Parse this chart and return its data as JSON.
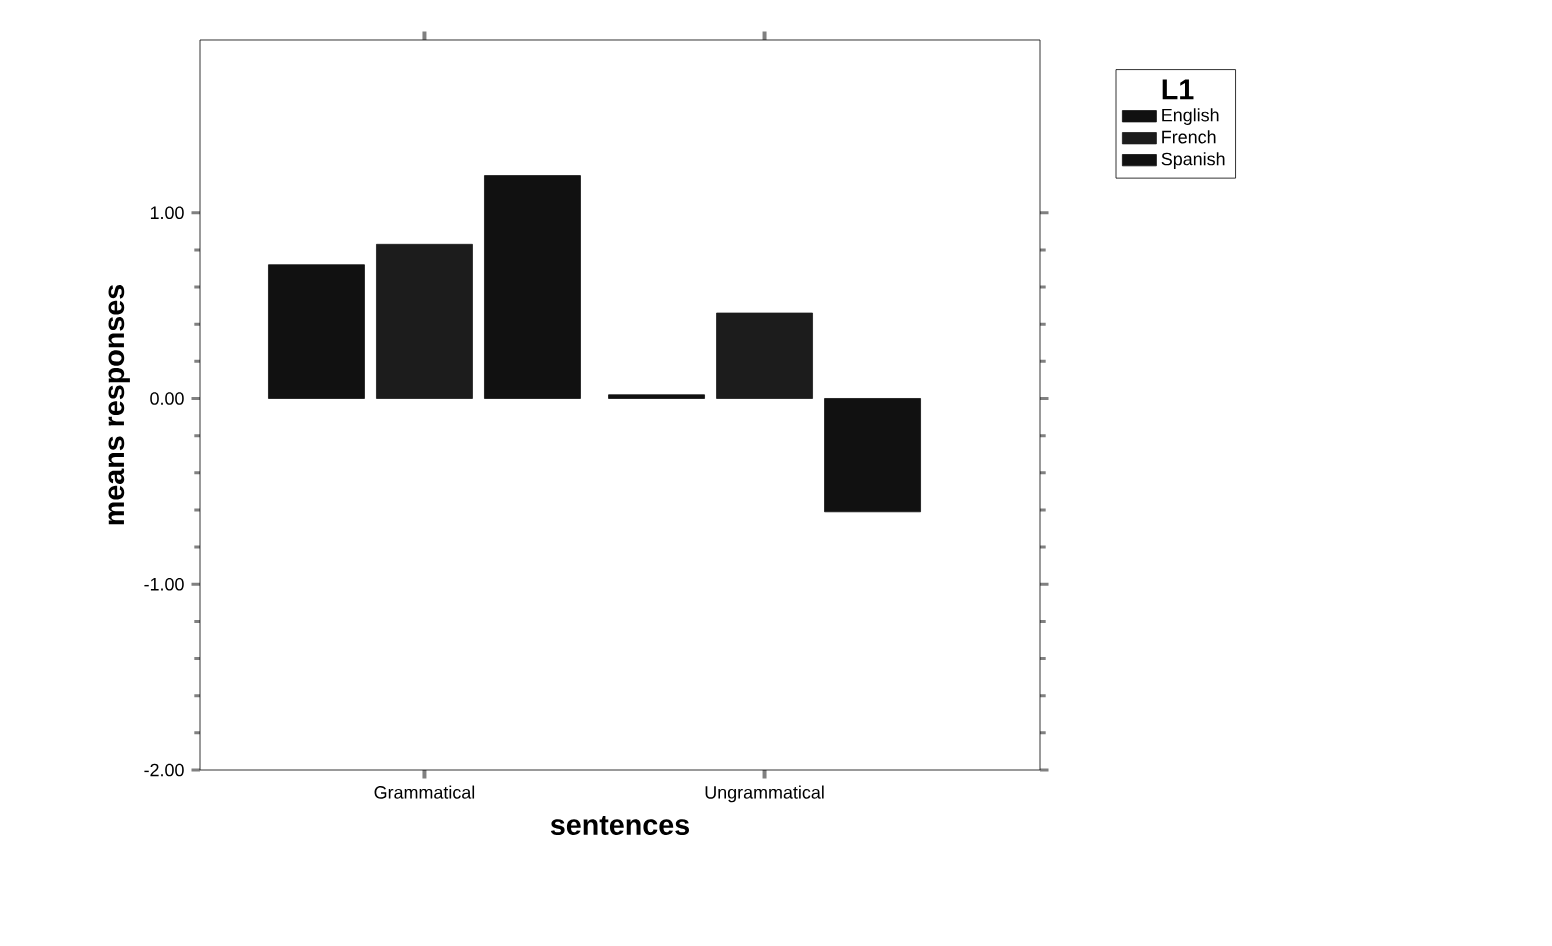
{
  "chart_data": {
    "type": "bar",
    "xlabel": "sentences",
    "ylabel": "means responses",
    "legend_title": "L1",
    "legend": "right",
    "grid": false,
    "categories": [
      "Grammatical",
      "Ungrammatical"
    ],
    "series": [
      {
        "name": "English",
        "color": "#111111",
        "values": [
          0.72,
          0.02
        ]
      },
      {
        "name": "French",
        "color": "#1c1c1c",
        "values": [
          0.83,
          0.46
        ]
      },
      {
        "name": "Spanish",
        "color": "#111111",
        "values": [
          1.2,
          -0.61
        ]
      }
    ],
    "ylim": [
      -2,
      1.93
    ],
    "yticks": [
      {
        "value": -2,
        "label": "-2.00"
      },
      {
        "value": -1,
        "label": "-1.00"
      },
      {
        "value": 0,
        "label": "0.00"
      },
      {
        "value": 1,
        "label": "1.00"
      }
    ]
  }
}
